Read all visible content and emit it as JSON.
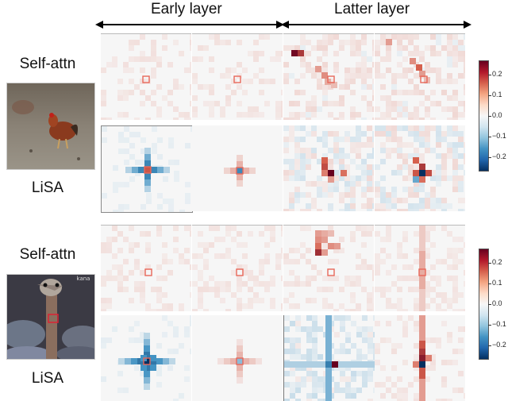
{
  "headers": {
    "early": "Early layer",
    "latter": "Latter layer"
  },
  "groups": [
    {
      "self_attn_label": "Self-attn",
      "lisa_label": "LiSA"
    },
    {
      "self_attn_label": "Self-attn",
      "lisa_label": "LiSA"
    }
  ],
  "photos": [
    {
      "subject": "rooster-on-dirt-ground"
    },
    {
      "subject": "ostrich-head-close-up",
      "watermark": "kana"
    }
  ],
  "colorbar": {
    "colormap": "diverging red-white-blue",
    "ticks": [
      "0.2",
      "0.1",
      "0.0",
      "−0.1",
      "−0.2"
    ]
  },
  "colors": {
    "query_box": "#e8685a",
    "pos_strong": "#67001f",
    "neg_strong": "#053061"
  }
}
